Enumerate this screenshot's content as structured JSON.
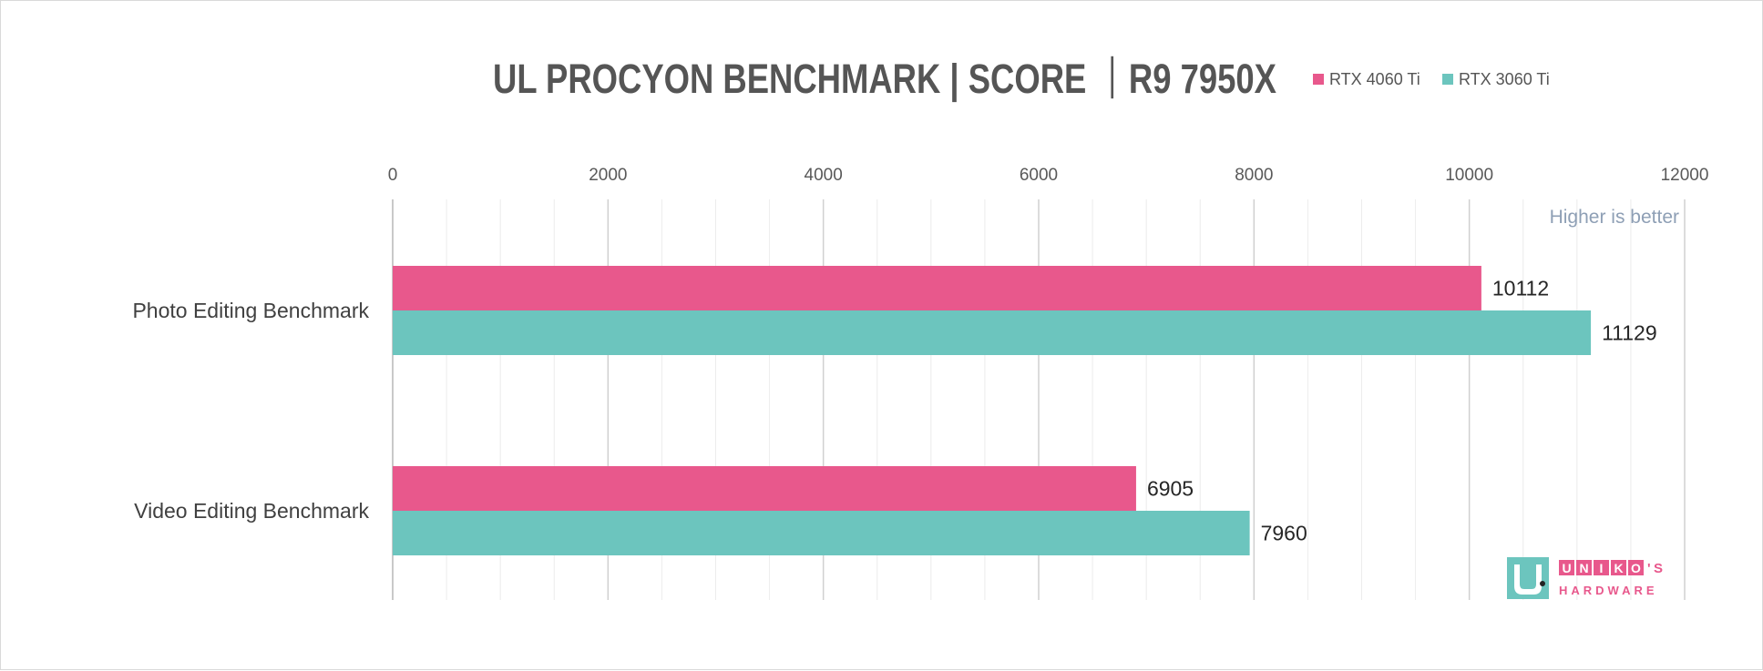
{
  "chart_data": {
    "type": "bar",
    "orientation": "horizontal",
    "title": "UL PROCYON BENCHMARK | SCORE ｜R9 7950X",
    "categories": [
      "Photo Editing Benchmark",
      "Video Editing Benchmark"
    ],
    "series": [
      {
        "name": "RTX 4060 Ti",
        "color": "#e8588c",
        "values": [
          10112,
          6905
        ]
      },
      {
        "name": "RTX 3060 Ti",
        "color": "#6cc5be",
        "values": [
          11129,
          7960
        ]
      }
    ],
    "xlim": [
      0,
      12000
    ],
    "x_ticks": [
      "0",
      "2000",
      "4000",
      "6000",
      "8000",
      "10000",
      "12000"
    ],
    "x_axis_position": "top",
    "grid": true,
    "legend_position": "top-right",
    "annotation": "Higher is better"
  },
  "watermark": {
    "line1": "UNIKO'S",
    "line2": "HARDWARE",
    "colors": {
      "teal": "#6cc5be",
      "pink": "#e8588c"
    }
  }
}
